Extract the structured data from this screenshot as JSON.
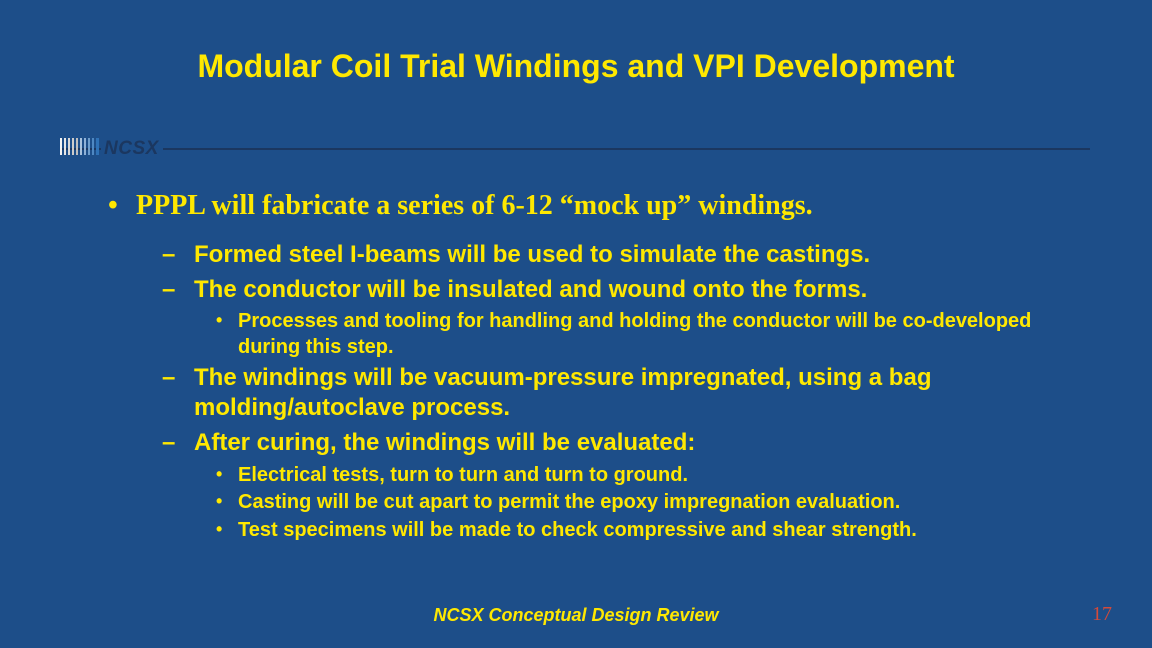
{
  "colors": {
    "background": "#1d4e89",
    "accent_text": "#ffe800",
    "divider": "#1b3760",
    "pagenum": "#d34a3a"
  },
  "title": "Modular Coil Trial Windings and VPI Development",
  "badge": "NCSX",
  "bullets": {
    "p1": "PPPL will fabricate a series of 6-12 “mock up” windings.",
    "s1": "Formed steel I-beams will be used to simulate the castings.",
    "s2": "The conductor will be insulated and wound onto the forms.",
    "s2a": "Processes and tooling for handling and holding the conductor will be co-developed during this step.",
    "s3": "The windings will be vacuum-pressure impregnated, using a bag molding/autoclave process.",
    "s4": "After curing, the windings will be evaluated:",
    "s4a": "Electrical tests, turn to turn and turn to ground.",
    "s4b": "Casting will be cut apart to permit the epoxy impregnation evaluation.",
    "s4c": "Test specimens will be made to check compressive and shear strength."
  },
  "footer": "NCSX Conceptual Design Review",
  "page_number": "17"
}
